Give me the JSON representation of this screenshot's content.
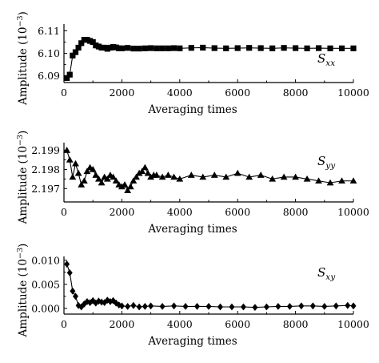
{
  "chart_data": [
    {
      "type": "line",
      "series": [
        {
          "name": "S_xx",
          "label_main": "S",
          "label_sub": "xx",
          "marker": "square",
          "x": [
            100,
            200,
            300,
            400,
            500,
            600,
            700,
            800,
            900,
            1000,
            1100,
            1200,
            1300,
            1400,
            1500,
            1600,
            1700,
            1800,
            1900,
            2000,
            2200,
            2400,
            2600,
            2800,
            3000,
            3200,
            3400,
            3600,
            3800,
            4000,
            4400,
            4800,
            5200,
            5600,
            6000,
            6400,
            6800,
            7200,
            7600,
            8000,
            8400,
            8800,
            9200,
            9600,
            10000
          ],
          "y": [
            6.089,
            6.0905,
            6.099,
            6.1005,
            6.1025,
            6.1045,
            6.106,
            6.106,
            6.1055,
            6.105,
            6.1035,
            6.103,
            6.1025,
            6.1025,
            6.102,
            6.1025,
            6.1028,
            6.1026,
            6.1022,
            6.1022,
            6.1024,
            6.1021,
            6.1021,
            6.1022,
            6.1023,
            6.1022,
            6.1022,
            6.1022,
            6.1023,
            6.1022,
            6.1024,
            6.1025,
            6.1023,
            6.1022,
            6.1023,
            6.1024,
            6.1023,
            6.1022,
            6.1024,
            6.1023,
            6.1022,
            6.1023,
            6.1022,
            6.1022,
            6.1022
          ]
        }
      ],
      "xlabel": "Averaging times",
      "ylabel": "Amplitude (10",
      "ylabel_exp": "−3",
      "ylabel_close": ")",
      "xlim": [
        0,
        10000
      ],
      "ylim": [
        6.087,
        6.113
      ],
      "xticks": [
        0,
        2000,
        4000,
        6000,
        8000,
        10000
      ],
      "xtick_labels": [
        "0",
        "2000",
        "4000",
        "6000",
        "8000",
        "10000"
      ],
      "yticks": [
        6.09,
        6.1,
        6.11
      ],
      "ytick_labels": [
        "6.09",
        "6.10",
        "6.11"
      ],
      "grid": false
    },
    {
      "type": "line",
      "series": [
        {
          "name": "S_yy",
          "label_main": "S",
          "label_sub": "yy",
          "marker": "triangle",
          "x": [
            100,
            200,
            300,
            400,
            500,
            600,
            700,
            800,
            900,
            1000,
            1100,
            1200,
            1300,
            1400,
            1500,
            1600,
            1700,
            1800,
            1900,
            2000,
            2100,
            2200,
            2300,
            2400,
            2500,
            2600,
            2700,
            2800,
            2900,
            3000,
            3100,
            3200,
            3400,
            3600,
            3800,
            4000,
            4400,
            4800,
            5200,
            5600,
            6000,
            6400,
            6800,
            7200,
            7600,
            8000,
            8400,
            8800,
            9200,
            9600,
            10000
          ],
          "y": [
            2.199,
            2.1985,
            2.1976,
            2.1983,
            2.1978,
            2.1972,
            2.1974,
            2.1979,
            2.1981,
            2.198,
            2.1977,
            2.1975,
            2.1973,
            2.1976,
            2.1975,
            2.1977,
            2.1976,
            2.1974,
            2.1972,
            2.1971,
            2.1972,
            2.1969,
            2.1971,
            2.1974,
            2.1976,
            2.1978,
            2.1979,
            2.1981,
            2.1978,
            2.1976,
            2.1977,
            2.1977,
            2.1976,
            2.1977,
            2.1976,
            2.1975,
            2.1977,
            2.1976,
            2.1977,
            2.1976,
            2.1978,
            2.1976,
            2.1977,
            2.1975,
            2.1976,
            2.1976,
            2.1975,
            2.1974,
            2.1973,
            2.1974,
            2.1974
          ]
        }
      ],
      "xlabel": "Averaging times",
      "ylabel": "Amplitude (10",
      "ylabel_exp": "−3",
      "ylabel_close": ")",
      "xlim": [
        0,
        10000
      ],
      "ylim": [
        2.1963,
        2.1994
      ],
      "xticks": [
        0,
        2000,
        4000,
        6000,
        8000,
        10000
      ],
      "xtick_labels": [
        "0",
        "2000",
        "4000",
        "6000",
        "8000",
        "10000"
      ],
      "yticks": [
        2.197,
        2.198,
        2.199
      ],
      "ytick_labels": [
        "2.197",
        "2.198",
        "2.199"
      ],
      "grid": false
    },
    {
      "type": "line",
      "series": [
        {
          "name": "S_xy",
          "label_main": "S",
          "label_sub": "xy",
          "marker": "diamond",
          "x": [
            100,
            200,
            300,
            400,
            500,
            600,
            700,
            800,
            900,
            1000,
            1100,
            1200,
            1300,
            1400,
            1500,
            1600,
            1700,
            1800,
            1900,
            2000,
            2200,
            2400,
            2600,
            2800,
            3000,
            3400,
            3800,
            4200,
            4600,
            5000,
            5400,
            5800,
            6200,
            6600,
            7000,
            7400,
            7800,
            8200,
            8600,
            9000,
            9400,
            9800,
            10000
          ],
          "y": [
            0.0092,
            0.0074,
            0.0036,
            0.0025,
            0.0006,
            0.0003,
            0.0009,
            0.0014,
            0.0012,
            0.0016,
            0.0011,
            0.0015,
            0.0013,
            0.0012,
            0.0017,
            0.0014,
            0.0016,
            0.0011,
            0.0007,
            0.0005,
            0.0004,
            0.0006,
            0.0003,
            0.0004,
            0.0005,
            0.0004,
            0.0005,
            0.0004,
            0.0004,
            0.0004,
            0.0003,
            0.0003,
            0.0003,
            0.0002,
            0.0003,
            0.0004,
            0.0004,
            0.0005,
            0.0005,
            0.0004,
            0.0005,
            0.0006,
            0.0005
          ]
        }
      ],
      "xlabel": "Averaging times",
      "ylabel": "Amplitude (10",
      "ylabel_exp": "−3",
      "ylabel_close": ")",
      "xlim": [
        0,
        10000
      ],
      "ylim": [
        -0.0012,
        0.0108
      ],
      "xticks": [
        0,
        2000,
        4000,
        6000,
        8000,
        10000
      ],
      "xtick_labels": [
        "0",
        "2000",
        "4000",
        "6000",
        "8000",
        "10000"
      ],
      "yticks": [
        0.0,
        0.005,
        0.01
      ],
      "ytick_labels": [
        "0.000",
        "0.005",
        "0.010"
      ],
      "grid": false
    }
  ]
}
